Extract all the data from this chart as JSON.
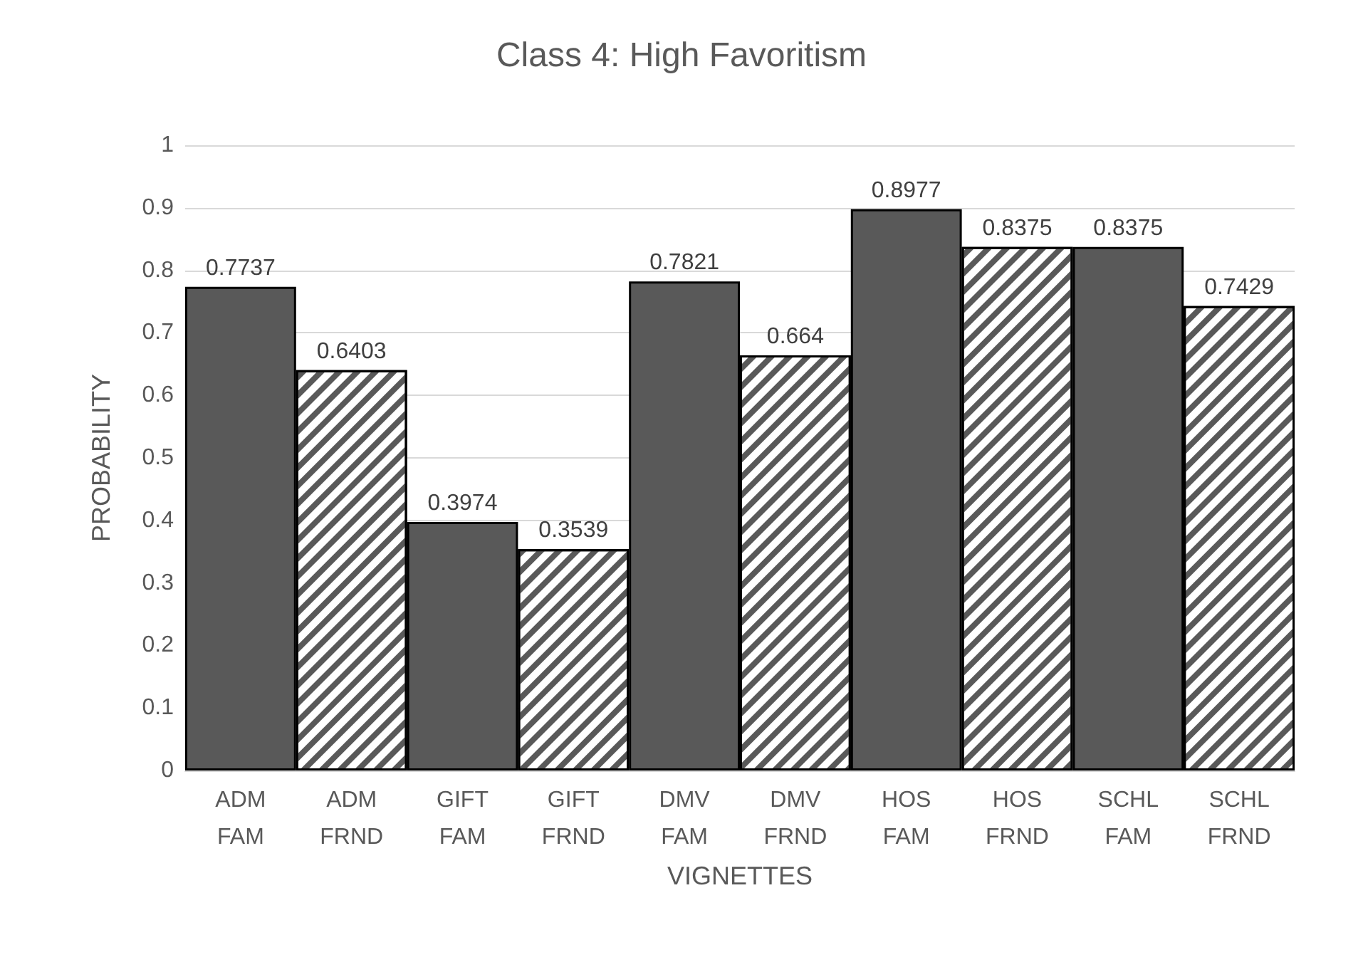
{
  "chart_data": {
    "type": "bar",
    "title": "Class 4: High Favoritism",
    "xlabel": "VIGNETTES",
    "ylabel": "PROBABILITY",
    "categories": [
      "ADM\nFAM",
      "ADM\nFRND",
      "GIFT\nFAM",
      "GIFT\nFRND",
      "DMV\nFAM",
      "DMV\nFRND",
      "HOS\nFAM",
      "HOS\nFRND",
      "SCHL\nFAM",
      "SCHL\nFRND"
    ],
    "values": [
      0.7737,
      0.6403,
      0.3974,
      0.3539,
      0.7821,
      0.664,
      0.8977,
      0.8375,
      0.8375,
      0.7429
    ],
    "colors": [
      "#595959",
      "#ffffff",
      "#595959",
      "#ffffff",
      "#595959",
      "#ffffff",
      "#595959",
      "#ffffff",
      "#595959",
      "#ffffff"
    ],
    "ylim": [
      0,
      1
    ],
    "yticks": [
      0,
      0.1,
      0.2,
      0.3,
      0.4,
      0.5,
      0.6,
      0.7,
      0.8,
      0.9,
      1
    ],
    "grid": "y",
    "data_labels": true
  }
}
